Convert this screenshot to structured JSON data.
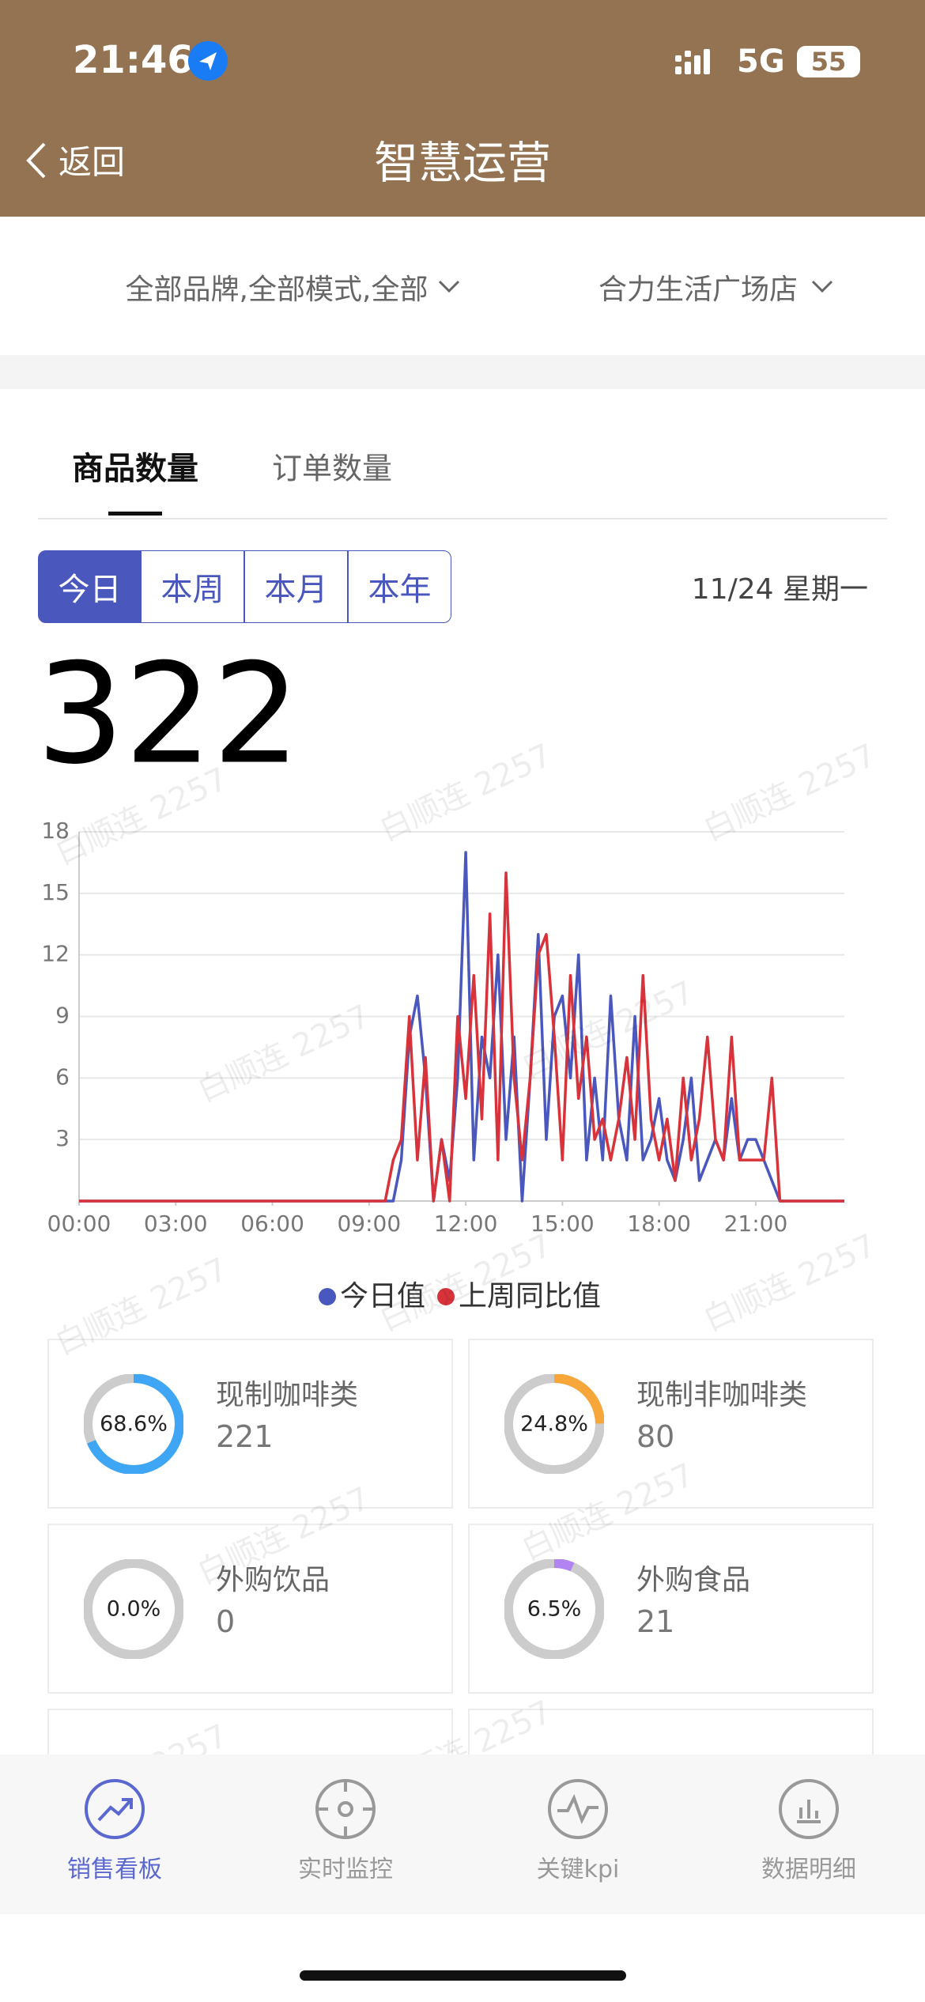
{
  "status_bar": {
    "time": "21:46",
    "network": "5G",
    "battery": "55"
  },
  "header": {
    "back": "返回",
    "title": "智慧运营"
  },
  "filters": [
    "全部品牌,全部模式,全部",
    "合力生活广场店"
  ],
  "tabs": [
    "商品数量",
    "订单数量"
  ],
  "period_buttons": [
    "今日",
    "本周",
    "本月",
    "本年"
  ],
  "date": "11/24 星期一",
  "total": 322,
  "watermark": "白顺连 2257",
  "chart_data": {
    "type": "line",
    "x": [
      0,
      0.25,
      0.5,
      0.75,
      1,
      1.25,
      1.5,
      1.75,
      2,
      2.25,
      2.5,
      2.75,
      3,
      3.25,
      3.5,
      3.75,
      4,
      4.25,
      4.5,
      4.75,
      5,
      5.25,
      5.5,
      5.75,
      6,
      6.25,
      6.5,
      6.75,
      7,
      7.25,
      7.5,
      7.75,
      8,
      8.25,
      8.5,
      8.75,
      9,
      9.25,
      9.5,
      9.75,
      10,
      10.25,
      10.5,
      10.75,
      11,
      11.25,
      11.5,
      11.75,
      12,
      12.25,
      12.5,
      12.75,
      13,
      13.25,
      13.5,
      13.75,
      14,
      14.25,
      14.5,
      14.75,
      15,
      15.25,
      15.5,
      15.75,
      16,
      16.25,
      16.5,
      16.75,
      17,
      17.25,
      17.5,
      17.75,
      18,
      18.25,
      18.5,
      18.75,
      19,
      19.25,
      19.5,
      19.75,
      20,
      20.25,
      20.5,
      20.75,
      21,
      21.25,
      21.5,
      21.75,
      22,
      22.25,
      22.5,
      22.75,
      23,
      23.25,
      23.5,
      23.75
    ],
    "xlim": [
      0,
      23.75
    ],
    "xticks": [
      {
        "value": 0,
        "label": "00:00"
      },
      {
        "value": 3,
        "label": "03:00"
      },
      {
        "value": 6,
        "label": "06:00"
      },
      {
        "value": 9,
        "label": "09:00"
      },
      {
        "value": 12,
        "label": "12:00"
      },
      {
        "value": 15,
        "label": "15:00"
      },
      {
        "value": 18,
        "label": "18:00"
      },
      {
        "value": 21,
        "label": "21:00"
      }
    ],
    "ylim": [
      0,
      18
    ],
    "yticks": [
      3,
      6,
      9,
      12,
      15,
      18
    ],
    "grid": true,
    "series": [
      {
        "name": "今日值",
        "color": "#4a57bd",
        "values": [
          0,
          0,
          0,
          0,
          0,
          0,
          0,
          0,
          0,
          0,
          0,
          0,
          0,
          0,
          0,
          0,
          0,
          0,
          0,
          0,
          0,
          0,
          0,
          0,
          0,
          0,
          0,
          0,
          0,
          0,
          0,
          0,
          0,
          0,
          0,
          0,
          0,
          0,
          0,
          0,
          2,
          8,
          10,
          6,
          0,
          3,
          1,
          6,
          17,
          2,
          8,
          6,
          12,
          3,
          8,
          0,
          6,
          13,
          3,
          9,
          10,
          6,
          12,
          2,
          6,
          2,
          10,
          4,
          2,
          9,
          2,
          3,
          5,
          2,
          1,
          3,
          6,
          1,
          2,
          3,
          2,
          5,
          2,
          3,
          3,
          2,
          1,
          0,
          0,
          0,
          0,
          0,
          0,
          0,
          0,
          0
        ]
      },
      {
        "name": "上周同比值",
        "color": "#d8333b",
        "values": [
          0,
          0,
          0,
          0,
          0,
          0,
          0,
          0,
          0,
          0,
          0,
          0,
          0,
          0,
          0,
          0,
          0,
          0,
          0,
          0,
          0,
          0,
          0,
          0,
          0,
          0,
          0,
          0,
          0,
          0,
          0,
          0,
          0,
          0,
          0,
          0,
          0,
          0,
          0,
          2,
          3,
          9,
          2,
          7,
          0,
          3,
          0,
          9,
          5,
          11,
          4,
          14,
          2,
          16,
          6,
          2,
          6,
          12,
          13,
          8,
          2,
          11,
          5,
          8,
          3,
          4,
          2,
          4,
          7,
          3,
          11,
          4,
          2,
          4,
          1,
          6,
          2,
          4,
          8,
          3,
          2,
          8,
          2,
          2,
          2,
          2,
          6,
          0,
          0,
          0,
          0,
          0,
          0,
          0,
          0,
          0
        ]
      }
    ]
  },
  "cards": [
    {
      "name": "现制咖啡类",
      "percent": 68.6,
      "percent_label": "68.6%",
      "count": 221,
      "color": "#3ea6f4"
    },
    {
      "name": "现制非咖啡类",
      "percent": 24.8,
      "percent_label": "24.8%",
      "count": 80,
      "color": "#f7a63a"
    },
    {
      "name": "外购饮品",
      "percent": 0,
      "percent_label": "0.0%",
      "count": 0,
      "color": "#3ea6f4"
    },
    {
      "name": "外购食品",
      "percent": 6.5,
      "percent_label": "6.5%",
      "count": 21,
      "color": "#b184f2"
    }
  ],
  "nav": [
    "销售看板",
    "实时监控",
    "关键kpi",
    "数据明细"
  ]
}
